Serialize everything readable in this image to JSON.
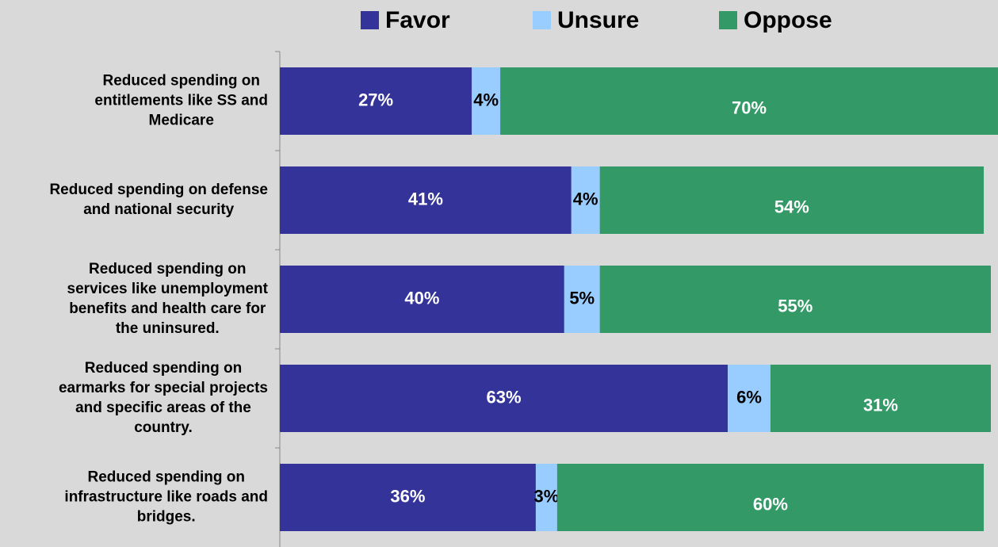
{
  "chart_data": {
    "type": "stacked-barh",
    "categories": [
      [
        "Reduced spending on",
        "entitlements like SS and",
        "Medicare"
      ],
      [
        "Reduced spending on defense",
        "and national security"
      ],
      [
        "Reduced spending on",
        "services like unemployment",
        "benefits and health care for",
        "the uninsured."
      ],
      [
        "Reduced spending on",
        "earmarks for special projects",
        "and specific areas of the",
        "country."
      ],
      [
        "Reduced spending on",
        "infrastructure like roads and",
        "bridges."
      ]
    ],
    "series": [
      {
        "name": "Favor",
        "color": "#333399",
        "label_color": "#ffffff",
        "values": [
          27,
          41,
          40,
          63,
          36
        ],
        "value_labels": [
          "27%",
          "41%",
          "40%",
          "63%",
          "36%"
        ]
      },
      {
        "name": "Unsure",
        "color": "#99ccff",
        "label_color": "#000000",
        "values": [
          4,
          4,
          5,
          6,
          3
        ],
        "value_labels": [
          "4%",
          "4%",
          "5%",
          "6%",
          "3%"
        ]
      },
      {
        "name": "Oppose",
        "color": "#339966",
        "label_color": "#ffffff",
        "values": [
          70,
          54,
          55,
          31,
          60
        ],
        "value_labels": [
          "70%",
          "54%",
          "55%",
          "31%",
          "60%"
        ]
      }
    ],
    "legend": "top"
  }
}
